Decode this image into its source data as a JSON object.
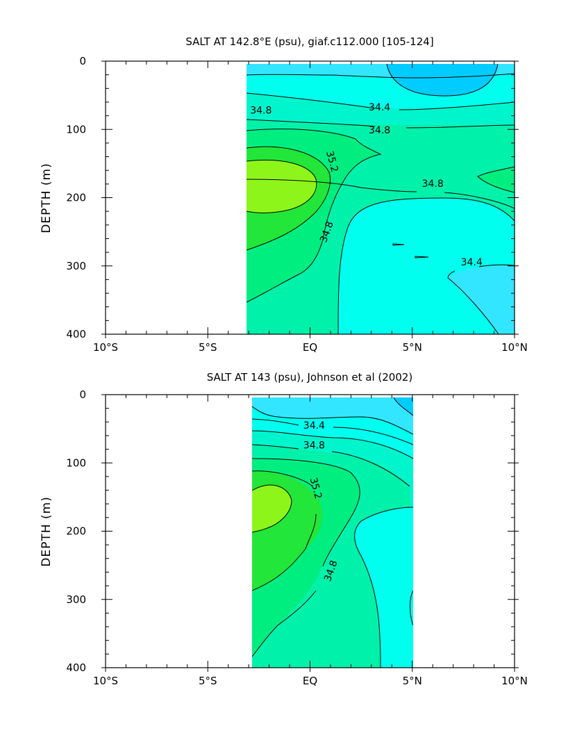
{
  "colors": {
    "s34_0": "#00ccff",
    "s34_2": "#33e6ff",
    "s34_4": "#00ffee",
    "s34_6": "#00f5cc",
    "s34_8": "#00f2aa",
    "s35_0": "#00ee80",
    "s35_2": "#22e63a",
    "s35_4": "#8ef51a"
  },
  "chart_data": [
    {
      "type": "contour",
      "title": "SALT AT 142.8°E (psu), giaf.c112.000 [105-124]",
      "xlabel": "",
      "ylabel": "DEPTH (m)",
      "xlim": [
        -10,
        10
      ],
      "ylim": [
        400,
        0
      ],
      "xticks": [
        -10,
        -5,
        0,
        5,
        10
      ],
      "xtick_labels": [
        "10°S",
        "5°S",
        "EQ",
        "5°N",
        "10°N"
      ],
      "yticks": [
        0,
        100,
        200,
        300,
        400
      ],
      "ytick_labels": [
        "0",
        "100",
        "200",
        "300",
        "400"
      ],
      "data_extent": {
        "lon": [
          -3.1,
          10
        ],
        "depth": [
          5,
          400
        ]
      },
      "contour_labels": [
        {
          "text": "34.8",
          "lon": -2.4,
          "depth": 72
        },
        {
          "text": "34.4",
          "lon": 3.4,
          "depth": 67
        },
        {
          "text": "34.8",
          "lon": 3.4,
          "depth": 101
        },
        {
          "text": "35.2",
          "lon": 1.1,
          "depth": 147
        },
        {
          "text": "34.8",
          "lon": 6.0,
          "depth": 179
        },
        {
          "text": "34.8",
          "lon": 0.8,
          "depth": 250
        },
        {
          "text": "34.4",
          "lon": 7.9,
          "depth": 294
        }
      ]
    },
    {
      "type": "contour",
      "title": "SALT AT 143 (psu), Johnson et al (2002)",
      "xlabel": "",
      "ylabel": "DEPTH (m)",
      "xlim": [
        -10,
        10
      ],
      "ylim": [
        400,
        0
      ],
      "xticks": [
        -10,
        -5,
        0,
        5,
        10
      ],
      "xtick_labels": [
        "10°S",
        "5°S",
        "EQ",
        "5°N",
        "10°N"
      ],
      "yticks": [
        0,
        100,
        200,
        300,
        400
      ],
      "ytick_labels": [
        "0",
        "100",
        "200",
        "300",
        "400"
      ],
      "data_extent": {
        "lon": [
          -2.9,
          5
        ],
        "depth": [
          5,
          400
        ]
      },
      "contour_labels": [
        {
          "text": "34.4",
          "lon": 0.2,
          "depth": 45
        },
        {
          "text": "34.8",
          "lon": 0.2,
          "depth": 74
        },
        {
          "text": "35.2",
          "lon": 0.3,
          "depth": 137
        },
        {
          "text": "34.8",
          "lon": 1.0,
          "depth": 258
        }
      ]
    }
  ]
}
